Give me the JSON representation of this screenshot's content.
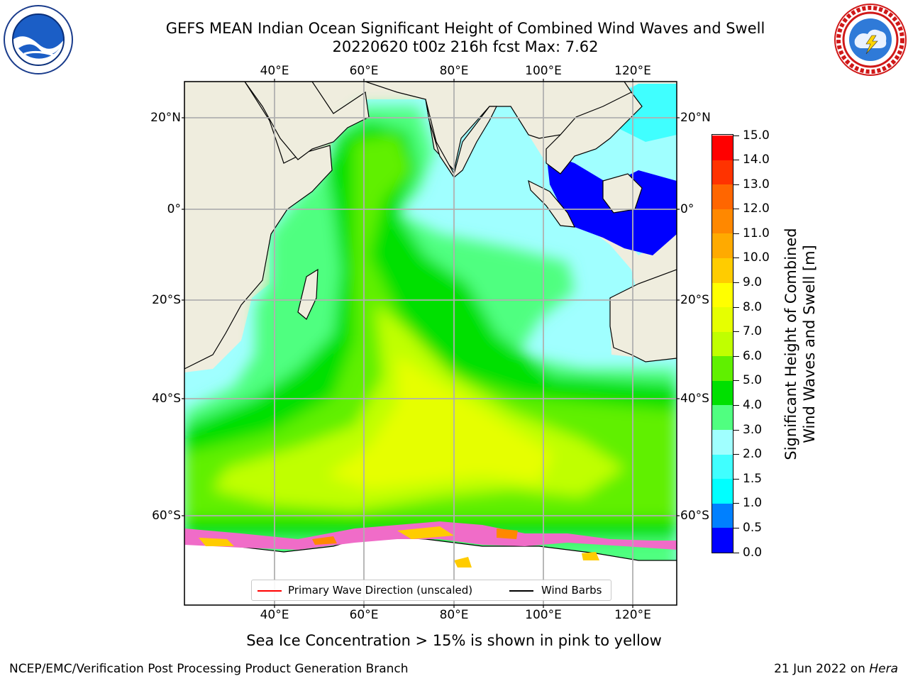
{
  "title": {
    "line1": "GEFS MEAN Indian Ocean Significant Height of Combined Wind Waves and Swell",
    "line2": "20220620 t00z 216h fcst   Max: 7.62"
  },
  "logos": {
    "left": "noaa-logo",
    "right": "nws-logo"
  },
  "map": {
    "longitude_labels": [
      "40°E",
      "60°E",
      "80°E",
      "100°E",
      "120°E"
    ],
    "latitude_labels": [
      "20°N",
      "0°",
      "20°S",
      "40°S",
      "60°S"
    ],
    "colors": {
      "land": "#efedde",
      "ice_shelf": "#ffffff",
      "sea_ice": "#f06cc8"
    }
  },
  "colorbar": {
    "title_line1": "Significant Height of Combined",
    "title_line2": "Wind Waves and Swell [m]",
    "tick_labels": [
      "0.0",
      "0.5",
      "1.0",
      "1.5",
      "2.0",
      "3.0",
      "4.0",
      "5.0",
      "6.0",
      "7.0",
      "8.0",
      "9.0",
      "10.0",
      "11.0",
      "12.0",
      "13.0",
      "14.0",
      "15.0"
    ],
    "colors": [
      "#0000ff",
      "#0080ff",
      "#00ffff",
      "#40ffff",
      "#a0ffff",
      "#50ff80",
      "#00e000",
      "#60f000",
      "#c0ff00",
      "#e6ff00",
      "#ffff00",
      "#ffcc00",
      "#ffaa00",
      "#ff8800",
      "#ff6600",
      "#ff3300",
      "#ff0000"
    ]
  },
  "legend": {
    "wave_direction_label": "Primary Wave Direction (unscaled)",
    "wave_direction_color": "#ff0000",
    "wind_barbs_label": "Wind Barbs",
    "wind_barbs_color": "#000000"
  },
  "note": "Sea Ice Concentration > 15% is shown in pink to yellow",
  "footer": {
    "left": "NCEP/EMC/Verification Post Processing Product Generation Branch",
    "date": "21 Jun 2022 on ",
    "host": "Hera"
  }
}
